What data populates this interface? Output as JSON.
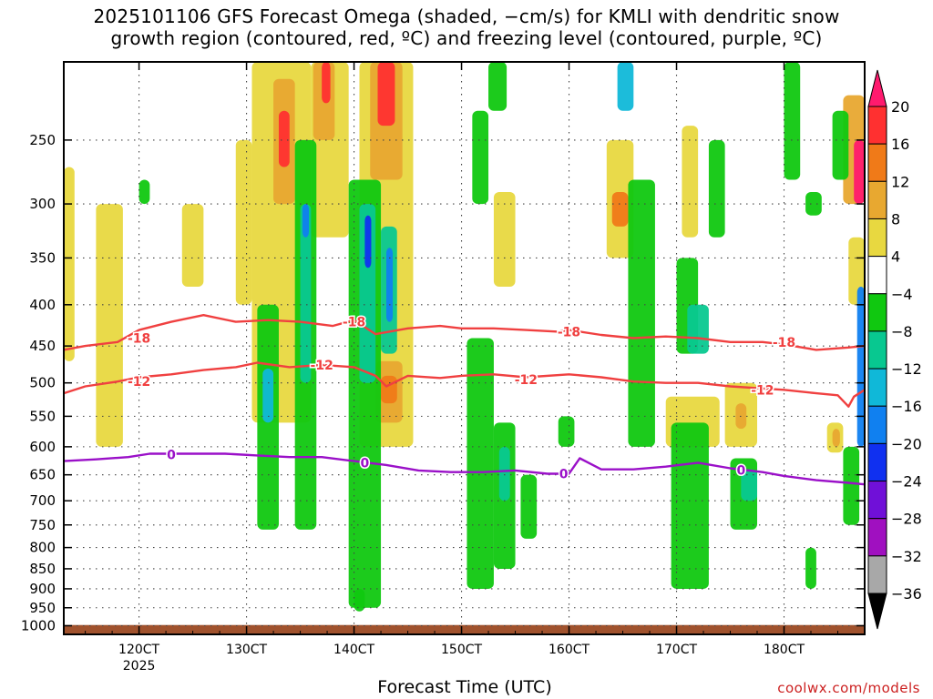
{
  "title": {
    "line1": "2025101106 GFS Forecast Omega (shaded, −cm/s) for KMLI with dendritic snow",
    "line2": "growth region (contoured, red, ºC) and freezing level (contoured, purple, ºC)"
  },
  "credit": "coolwx.com/models",
  "chart_data": {
    "type": "heatmap",
    "xlabel": "Forecast Time (UTC)",
    "x_ticks": [
      {
        "label": "120CT",
        "sub": "2025"
      },
      {
        "label": "130CT",
        "sub": ""
      },
      {
        "label": "140CT",
        "sub": ""
      },
      {
        "label": "150CT",
        "sub": ""
      },
      {
        "label": "160CT",
        "sub": ""
      },
      {
        "label": "170CT",
        "sub": ""
      },
      {
        "label": "180CT",
        "sub": ""
      }
    ],
    "x_range_days": [
      11.3,
      18.75
    ],
    "y_ticks": [
      250,
      300,
      350,
      400,
      450,
      500,
      550,
      600,
      650,
      700,
      750,
      800,
      850,
      900,
      950,
      1000
    ],
    "ylim_hpa": [
      1025,
      200
    ],
    "y_scale": "log",
    "grid": true,
    "colorbar": {
      "labels": [
        "20",
        "16",
        "12",
        "8",
        "4",
        "−4",
        "−8",
        "−12",
        "−16",
        "−20",
        "−24",
        "−28",
        "−32",
        "−36"
      ],
      "colors": [
        "#ff1a6e",
        "#ff3030",
        "#f07a18",
        "#e8a830",
        "#e8d840",
        "#ffffff",
        "#10c810",
        "#08c890",
        "#10b8d8",
        "#1080f0",
        "#1030f0",
        "#7010d8",
        "#a010c0",
        "#a8a8a8",
        "#000000"
      ]
    },
    "contours": [
      {
        "label": "-18",
        "color": "#f04040",
        "points": [
          [
            11.3,
            455
          ],
          [
            11.5,
            450
          ],
          [
            11.8,
            445
          ],
          [
            12.0,
            430
          ],
          [
            12.3,
            420
          ],
          [
            12.6,
            412
          ],
          [
            12.9,
            420
          ],
          [
            13.2,
            418
          ],
          [
            13.5,
            420
          ],
          [
            13.8,
            425
          ],
          [
            14.0,
            418
          ],
          [
            14.2,
            435
          ],
          [
            14.5,
            428
          ],
          [
            14.8,
            425
          ],
          [
            15.0,
            428
          ],
          [
            15.3,
            428
          ],
          [
            15.6,
            430
          ],
          [
            15.9,
            432
          ],
          [
            16.0,
            430
          ],
          [
            16.3,
            436
          ],
          [
            16.6,
            440
          ],
          [
            16.9,
            438
          ],
          [
            17.2,
            440
          ],
          [
            17.5,
            445
          ],
          [
            17.8,
            445
          ],
          [
            18.0,
            448
          ],
          [
            18.3,
            455
          ],
          [
            18.6,
            452
          ],
          [
            18.75,
            450
          ]
        ],
        "label_at": [
          [
            12.0,
            440
          ],
          [
            14.0,
            420
          ],
          [
            16.0,
            432
          ],
          [
            18.0,
            445
          ]
        ]
      },
      {
        "label": "-12",
        "color": "#f04040",
        "points": [
          [
            11.3,
            515
          ],
          [
            11.5,
            505
          ],
          [
            11.8,
            498
          ],
          [
            12.0,
            492
          ],
          [
            12.3,
            488
          ],
          [
            12.6,
            482
          ],
          [
            12.9,
            478
          ],
          [
            13.1,
            472
          ],
          [
            13.4,
            478
          ],
          [
            13.7,
            475
          ],
          [
            14.0,
            478
          ],
          [
            14.2,
            490
          ],
          [
            14.3,
            505
          ],
          [
            14.5,
            490
          ],
          [
            14.8,
            493
          ],
          [
            15.0,
            490
          ],
          [
            15.3,
            488
          ],
          [
            15.6,
            492
          ],
          [
            16.0,
            488
          ],
          [
            16.3,
            492
          ],
          [
            16.6,
            498
          ],
          [
            16.9,
            500
          ],
          [
            17.2,
            500
          ],
          [
            17.5,
            505
          ],
          [
            17.8,
            508
          ],
          [
            18.0,
            510
          ],
          [
            18.3,
            515
          ],
          [
            18.5,
            518
          ],
          [
            18.6,
            535
          ],
          [
            18.65,
            520
          ],
          [
            18.75,
            510
          ]
        ],
        "label_at": [
          [
            12.0,
            498
          ],
          [
            13.7,
            475
          ],
          [
            15.6,
            495
          ],
          [
            17.8,
            510
          ]
        ]
      },
      {
        "label": "0",
        "color": "#9a10c8",
        "points": [
          [
            11.3,
            625
          ],
          [
            11.6,
            622
          ],
          [
            11.9,
            618
          ],
          [
            12.1,
            612
          ],
          [
            12.4,
            612
          ],
          [
            12.8,
            612
          ],
          [
            13.1,
            615
          ],
          [
            13.4,
            618
          ],
          [
            13.7,
            618
          ],
          [
            14.0,
            625
          ],
          [
            14.3,
            632
          ],
          [
            14.6,
            642
          ],
          [
            14.9,
            645
          ],
          [
            15.2,
            645
          ],
          [
            15.5,
            642
          ],
          [
            15.8,
            648
          ],
          [
            16.0,
            648
          ],
          [
            16.1,
            620
          ],
          [
            16.3,
            640
          ],
          [
            16.6,
            640
          ],
          [
            16.9,
            635
          ],
          [
            17.2,
            628
          ],
          [
            17.5,
            638
          ],
          [
            17.8,
            645
          ],
          [
            18.0,
            652
          ],
          [
            18.3,
            660
          ],
          [
            18.6,
            665
          ],
          [
            18.75,
            668
          ]
        ],
        "label_at": [
          [
            12.3,
            614
          ],
          [
            14.1,
            628
          ],
          [
            15.95,
            648
          ],
          [
            17.6,
            641
          ]
        ]
      }
    ],
    "surface_color": "#a0522d"
  }
}
